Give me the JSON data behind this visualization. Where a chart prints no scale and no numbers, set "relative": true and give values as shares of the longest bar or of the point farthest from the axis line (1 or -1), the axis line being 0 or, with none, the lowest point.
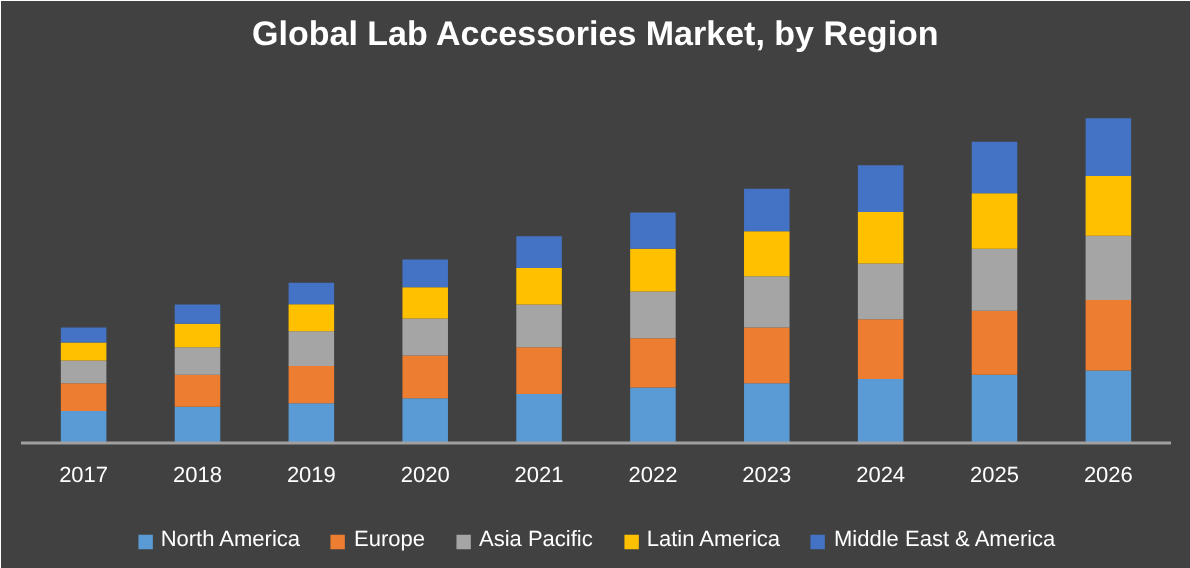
{
  "chart_data": {
    "type": "bar",
    "title": "Global Lab Accessories Market, by Region",
    "categories": [
      "2017",
      "2018",
      "2019",
      "2020",
      "2021",
      "2022",
      "2023",
      "2024",
      "2025",
      "2026"
    ],
    "stacked": true,
    "relative": true,
    "grid": false,
    "legend": "bottom",
    "series": [
      {
        "name": "North America",
        "color": "#5b9bd5",
        "values": [
          0.101,
          0.114,
          0.125,
          0.14,
          0.153,
          0.173,
          0.186,
          0.199,
          0.212,
          0.225
        ]
      },
      {
        "name": "Europe",
        "color": "#ed7d31",
        "values": [
          0.085,
          0.098,
          0.114,
          0.131,
          0.144,
          0.151,
          0.171,
          0.184,
          0.197,
          0.217
        ]
      },
      {
        "name": "Asia Pacific",
        "color": "#a5a5a5",
        "values": [
          0.07,
          0.085,
          0.107,
          0.114,
          0.131,
          0.144,
          0.158,
          0.171,
          0.19,
          0.197
        ]
      },
      {
        "name": "Latin America",
        "color": "#ffc000",
        "values": [
          0.055,
          0.072,
          0.083,
          0.096,
          0.112,
          0.131,
          0.138,
          0.158,
          0.171,
          0.184
        ]
      },
      {
        "name": "Middle East & America",
        "color": "#4472c4",
        "values": [
          0.046,
          0.059,
          0.066,
          0.085,
          0.098,
          0.112,
          0.131,
          0.144,
          0.158,
          0.177
        ]
      }
    ]
  }
}
